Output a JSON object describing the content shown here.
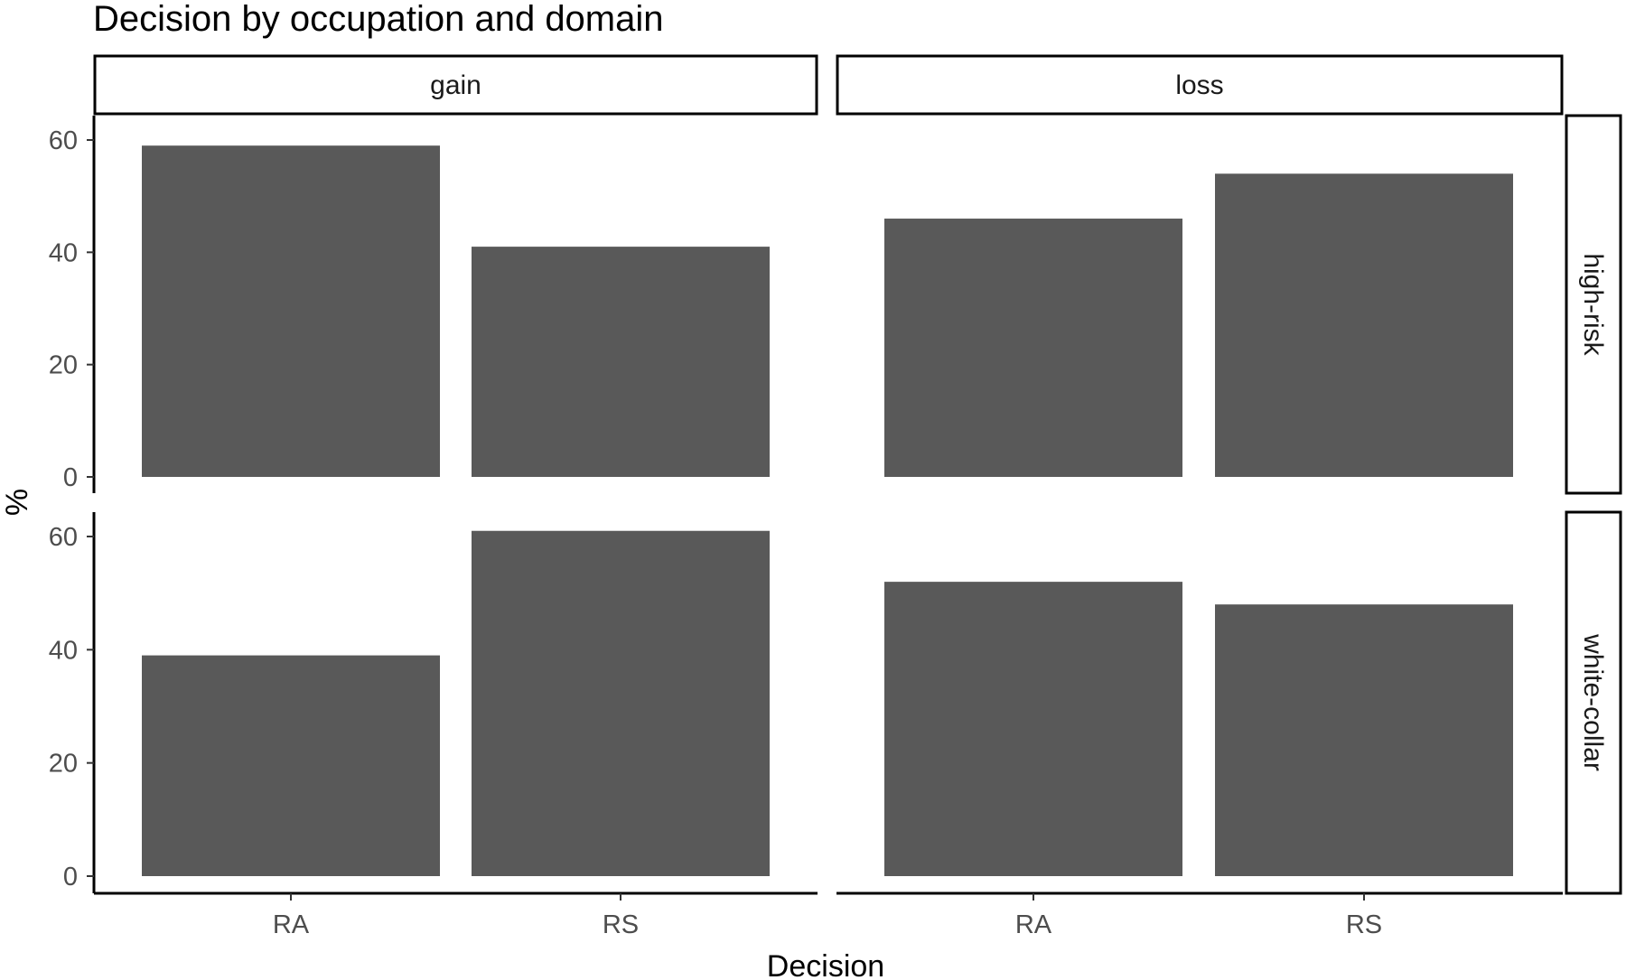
{
  "chart_data": {
    "type": "bar",
    "title": "Decision by occupation and domain",
    "xlabel": "Decision",
    "ylabel": "%",
    "categories": [
      "RA",
      "RS"
    ],
    "facet_columns": [
      "gain",
      "loss"
    ],
    "facet_rows": [
      "high-risk",
      "white-collar"
    ],
    "ylim": [
      0,
      63
    ],
    "yticks": [
      0,
      20,
      40,
      60
    ],
    "bar_color": "#595959",
    "grid": false,
    "legend": "none",
    "panels": [
      {
        "column": "gain",
        "row": "high-risk",
        "values": [
          59,
          41
        ]
      },
      {
        "column": "loss",
        "row": "high-risk",
        "values": [
          46,
          54
        ]
      },
      {
        "column": "gain",
        "row": "white-collar",
        "values": [
          39,
          61
        ]
      },
      {
        "column": "loss",
        "row": "white-collar",
        "values": [
          52,
          48
        ]
      }
    ]
  }
}
